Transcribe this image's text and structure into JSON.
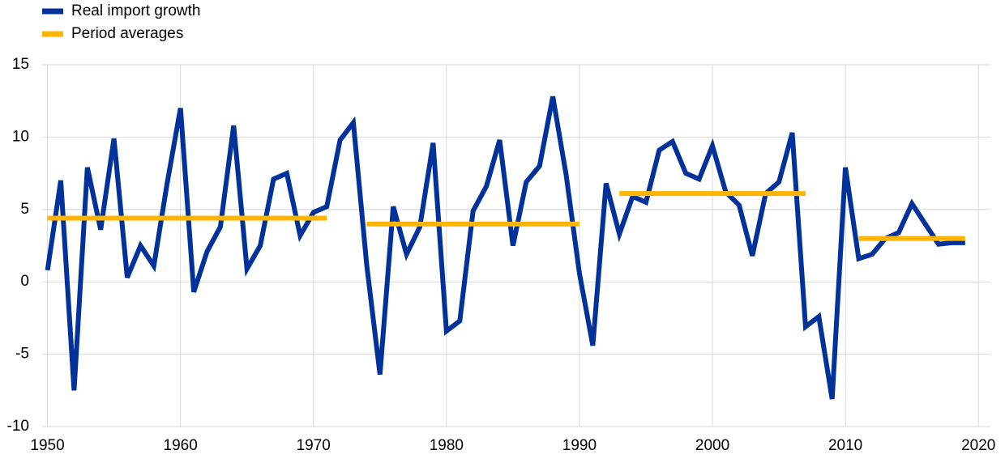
{
  "chart_data": {
    "type": "line",
    "x": [
      1950,
      1951,
      1952,
      1953,
      1954,
      1955,
      1956,
      1957,
      1958,
      1959,
      1960,
      1961,
      1962,
      1963,
      1964,
      1965,
      1966,
      1967,
      1968,
      1969,
      1970,
      1971,
      1972,
      1973,
      1974,
      1975,
      1976,
      1977,
      1978,
      1979,
      1980,
      1981,
      1982,
      1983,
      1984,
      1985,
      1986,
      1987,
      1988,
      1989,
      1990,
      1991,
      1992,
      1993,
      1994,
      1995,
      1996,
      1997,
      1998,
      1999,
      2000,
      2001,
      2002,
      2003,
      2004,
      2005,
      2006,
      2007,
      2008,
      2009,
      2010,
      2011,
      2012,
      2013,
      2014,
      2015,
      2016,
      2017,
      2018,
      2019
    ],
    "series": [
      {
        "name": "Real import growth",
        "color": "#003299",
        "values": [
          0.8,
          7.0,
          -7.5,
          7.9,
          3.6,
          9.9,
          0.3,
          2.5,
          1.1,
          6.8,
          12.0,
          -0.7,
          2.1,
          3.8,
          10.8,
          0.9,
          2.5,
          7.1,
          7.5,
          3.2,
          4.8,
          5.2,
          9.8,
          11.0,
          1.2,
          -6.4,
          5.2,
          1.9,
          3.8,
          9.6,
          -3.4,
          -2.7,
          4.9,
          6.6,
          9.8,
          2.5,
          6.9,
          8.0,
          12.8,
          7.4,
          0.6,
          -4.4,
          6.8,
          3.3,
          5.9,
          5.5,
          9.1,
          9.7,
          7.5,
          7.1,
          9.4,
          6.2,
          5.3,
          1.8,
          6.1,
          6.9,
          10.3,
          -3.1,
          -2.4,
          -8.1,
          7.9,
          1.6,
          1.9,
          3.0,
          3.4,
          5.4,
          4.0,
          2.6,
          2.7,
          2.7
        ]
      },
      {
        "name": "Period averages",
        "color": "#ffb400",
        "values": [
          4.4,
          4.4,
          4.4,
          4.4,
          4.4,
          4.4,
          4.4,
          4.4,
          4.4,
          4.4,
          4.4,
          4.4,
          4.4,
          4.4,
          4.4,
          4.4,
          4.4,
          4.4,
          4.4,
          4.4,
          4.4,
          4.4,
          null,
          null,
          4.0,
          4.0,
          4.0,
          4.0,
          4.0,
          4.0,
          4.0,
          4.0,
          4.0,
          4.0,
          4.0,
          4.0,
          4.0,
          4.0,
          4.0,
          4.0,
          4.0,
          null,
          null,
          6.1,
          6.1,
          6.1,
          6.1,
          6.1,
          6.1,
          6.1,
          6.1,
          6.1,
          6.1,
          6.1,
          6.1,
          6.1,
          6.1,
          6.1,
          null,
          null,
          null,
          3.0,
          3.0,
          3.0,
          3.0,
          3.0,
          3.0,
          3.0,
          3.0,
          3.0
        ]
      }
    ],
    "xlim": [
      1949.6,
      2020.9
    ],
    "xticks": [
      1950,
      1960,
      1970,
      1980,
      1990,
      2000,
      2010,
      2020
    ],
    "ylim": [
      -10,
      15
    ],
    "yticks": [
      -10,
      -5,
      0,
      5,
      10,
      15
    ],
    "grid": true,
    "legend": "top-left"
  }
}
